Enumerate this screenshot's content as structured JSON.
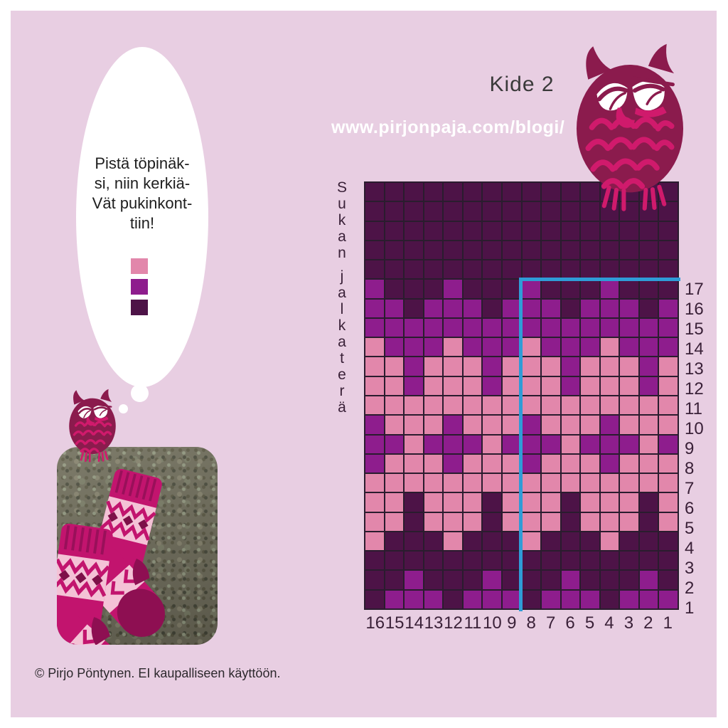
{
  "header": {
    "title": "Kide 2",
    "url": "www.pirjonpaja.com/blogi/"
  },
  "speech_bubble": {
    "lines": [
      "Pistä töpinäk-",
      "si, niin kerkiä-",
      "Vät pukinkont-",
      "tiin!"
    ]
  },
  "legend": {
    "swatches": [
      {
        "name": "pink",
        "color": "#e287ab"
      },
      {
        "name": "purple",
        "color": "#8e1d8d"
      },
      {
        "name": "dark-purple",
        "color": "#4d1347"
      }
    ]
  },
  "palette": {
    "background": "#e8cee2",
    "grid_line": "#2a1c2e",
    "blue_marker": "#2f9cd7",
    "owl_body": "#8b1b4d",
    "owl_accent": "#d01a6c",
    "label_text": "#3a2138"
  },
  "chart": {
    "side_label": "Sukan jalkaterä",
    "side_label_letters": [
      "S",
      "u",
      "k",
      "a",
      "n",
      " ",
      "j",
      "a",
      "l",
      "k",
      "a",
      "t",
      "e",
      "r",
      "ä"
    ],
    "column_labels": [
      "16",
      "15",
      "14",
      "13",
      "12",
      "11",
      "10",
      "9",
      "8",
      "7",
      "6",
      "5",
      "4",
      "3",
      "2",
      "1"
    ],
    "row_labels": [
      "17",
      "16",
      "15",
      "14",
      "13",
      "12",
      "11",
      "10",
      "9",
      "8",
      "7",
      "6",
      "5",
      "4",
      "3",
      "2",
      "1"
    ],
    "unnumbered_top_rows": 5,
    "cell_colors": {
      "D": "#4d1347",
      "M": "#8e1d8d",
      "P": "#e287ab"
    },
    "marker": {
      "color": "#2f9cd7",
      "vertical_left_of_column": 8,
      "horizontal_above_row": 17
    },
    "rows": [
      {
        "label": "",
        "cells": "DDDDDDDDDDDDDDDD"
      },
      {
        "label": "",
        "cells": "DDDDDDDDDDDDDDDD"
      },
      {
        "label": "",
        "cells": "DDDDDDDDDDDDDDDD"
      },
      {
        "label": "",
        "cells": "DDDDDDDDDDDDDDDD"
      },
      {
        "label": "",
        "cells": "DDDDDDDDDDDDDDDD"
      },
      {
        "label": "17",
        "cells": "MDDDMDDDMDDDMDDD"
      },
      {
        "label": "16",
        "cells": "MMDMMMDMMMDMMMDM"
      },
      {
        "label": "15",
        "cells": "MMMMMMMMMMMMMMMM"
      },
      {
        "label": "14",
        "cells": "PMMMPMMMPMMMPMMM"
      },
      {
        "label": "13",
        "cells": "PPMPPPMPPPMPPPMP"
      },
      {
        "label": "12",
        "cells": "PPMPPPMPPPMPPPMP"
      },
      {
        "label": "11",
        "cells": "PPPPPPPPPPPPPPPP"
      },
      {
        "label": "10",
        "cells": "MPPPMPPPMPPPMPPP"
      },
      {
        "label": "9",
        "cells": "MMPMMMPMMMPMMMPM"
      },
      {
        "label": "8",
        "cells": "MPPPMPPPMPPPMPPP"
      },
      {
        "label": "7",
        "cells": "PPPPPPPPPPPPPPPP"
      },
      {
        "label": "6",
        "cells": "PPDPPPDPPPDPPPDP"
      },
      {
        "label": "5",
        "cells": "PPDPPPDPPPDPPPDP"
      },
      {
        "label": "4",
        "cells": "PDDDPDDDPDDDPDDD"
      },
      {
        "label": "3",
        "cells": "DDDDDDDDDDDDDDDD"
      },
      {
        "label": "2",
        "cells": "DDMDDDMDDDMDDDMD"
      },
      {
        "label": "1",
        "cells": "DMMMDMMMDMMMDMMM"
      }
    ]
  },
  "footer": {
    "copyright": "© Pirjo Pöntynen. EI kaupalliseen käyttöön."
  }
}
